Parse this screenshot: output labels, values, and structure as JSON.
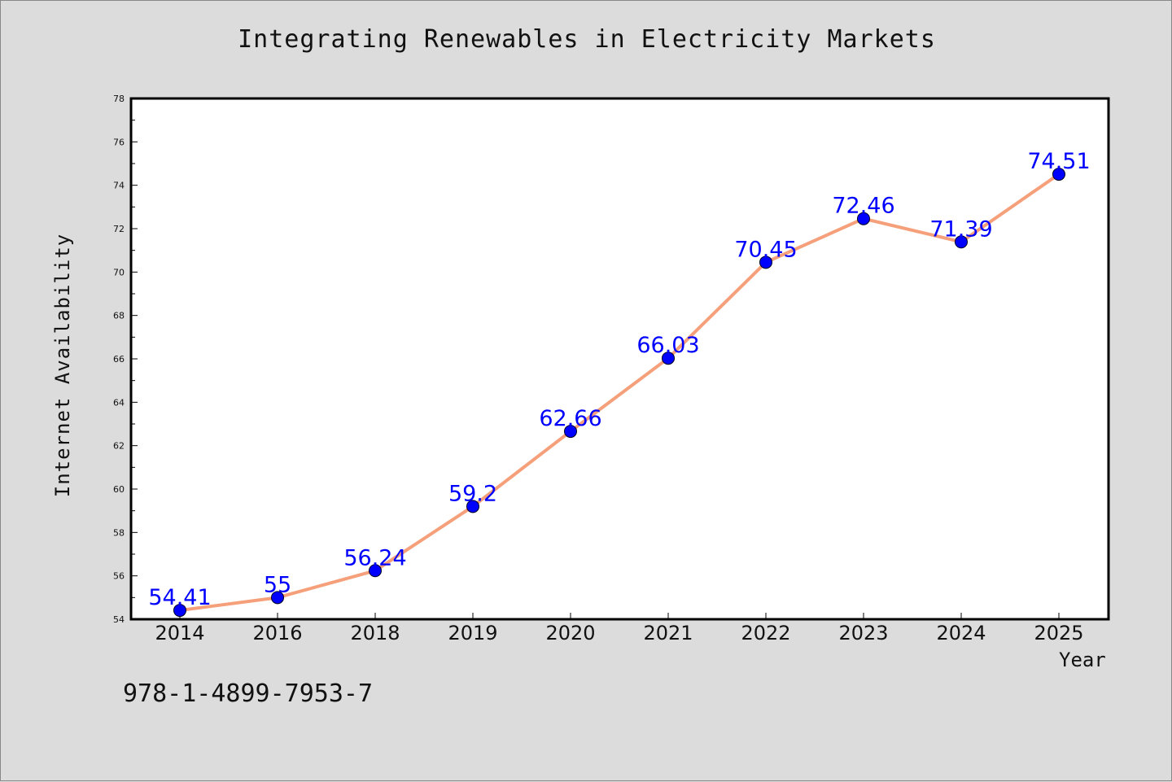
{
  "title": "Integrating Renewables in Electricity Markets",
  "footer_code": "978-1-4899-7953-7",
  "colors": {
    "background": "#dcdcdc",
    "plot_background": "#ffffff",
    "line": "#f5a07a",
    "marker": "#0000ff",
    "data_label": "#0000ff"
  },
  "chart_data": {
    "type": "line",
    "title": "Integrating Renewables in Electricity Markets",
    "xlabel": "Year",
    "ylabel": "Internet Availability",
    "categories": [
      "2014",
      "2016",
      "2018",
      "2019",
      "2020",
      "2021",
      "2022",
      "2023",
      "2024",
      "2025"
    ],
    "values": [
      54.41,
      55,
      56.24,
      59.2,
      62.66,
      66.03,
      70.45,
      72.46,
      71.39,
      74.51
    ],
    "data_labels": [
      "54.41",
      "55",
      "56.24",
      "59.2",
      "62.66",
      "66.03",
      "70.45",
      "72.46",
      "71.39",
      "74.51"
    ],
    "ylim": [
      54,
      78
    ],
    "yticks": [
      54,
      56,
      58,
      60,
      62,
      64,
      66,
      68,
      70,
      72,
      74,
      76,
      78
    ],
    "grid": false,
    "legend": "none",
    "marker": "circle"
  }
}
